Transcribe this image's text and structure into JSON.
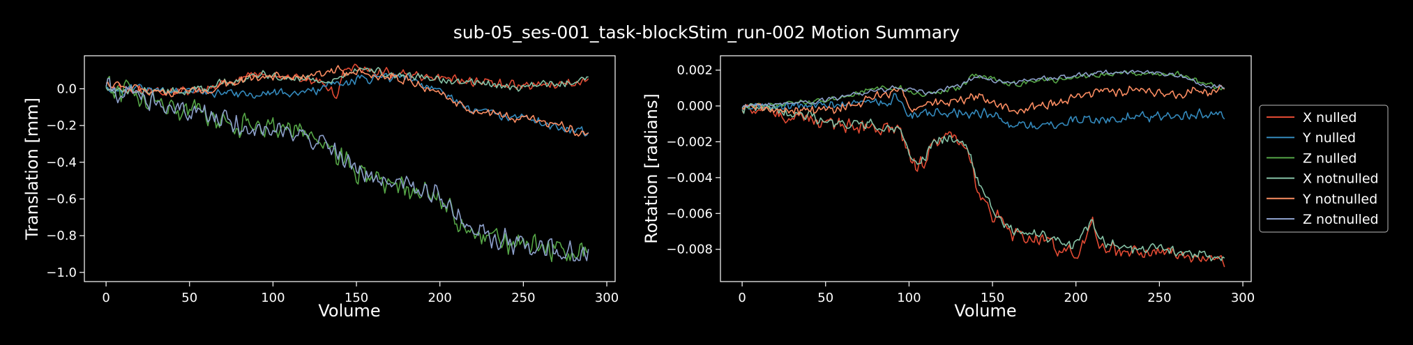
{
  "figure": {
    "title": "sub-05_ses-001_task-blockStim_run-002 Motion Summary",
    "background": "#000000",
    "foreground": "#ffffff"
  },
  "legend": {
    "placement": "right, outside axes",
    "entries": [
      {
        "name": "X nulled",
        "color": "#e24a33"
      },
      {
        "name": "Y nulled",
        "color": "#348abd"
      },
      {
        "name": "Z nulled",
        "color": "#55a546"
      },
      {
        "name": "X notnulled",
        "color": "#86c3a6"
      },
      {
        "name": "Y notnulled",
        "color": "#fc8d62"
      },
      {
        "name": "Z notnulled",
        "color": "#8da0cb"
      }
    ]
  },
  "chart_data": [
    {
      "type": "line",
      "title": "",
      "xlabel": "Volume",
      "ylabel": "Translation [mm]",
      "xlim": [
        -13,
        305
      ],
      "ylim": [
        -1.05,
        0.18
      ],
      "xticks": [
        0,
        50,
        100,
        150,
        200,
        250,
        300
      ],
      "yticks": [
        0.0,
        -0.2,
        -0.4,
        -0.6,
        -0.8,
        -1.0
      ],
      "ytick_labels": [
        "0.0",
        "−0.2",
        "−0.4",
        "−0.6",
        "−0.8",
        "−1.0"
      ],
      "grid": false,
      "series": [
        {
          "name": "X nulled",
          "color": "#e24a33",
          "n": 290,
          "keypoints": [
            [
              0,
              0.0
            ],
            [
              30,
              -0.01
            ],
            [
              50,
              -0.02
            ],
            [
              70,
              0.03
            ],
            [
              90,
              0.08
            ],
            [
              110,
              0.06
            ],
            [
              130,
              0.04
            ],
            [
              138,
              -0.05
            ],
            [
              142,
              0.12
            ],
            [
              160,
              0.1
            ],
            [
              180,
              0.08
            ],
            [
              200,
              0.06
            ],
            [
              220,
              0.04
            ],
            [
              250,
              0.02
            ],
            [
              270,
              0.03
            ],
            [
              289,
              0.04
            ]
          ],
          "noise": 0.018
        },
        {
          "name": "Y nulled",
          "color": "#348abd",
          "n": 290,
          "keypoints": [
            [
              0,
              0.0
            ],
            [
              30,
              -0.01
            ],
            [
              60,
              -0.02
            ],
            [
              90,
              -0.03
            ],
            [
              110,
              -0.02
            ],
            [
              130,
              0.0
            ],
            [
              140,
              0.03
            ],
            [
              160,
              0.06
            ],
            [
              180,
              0.07
            ],
            [
              200,
              -0.02
            ],
            [
              220,
              -0.12
            ],
            [
              250,
              -0.16
            ],
            [
              270,
              -0.2
            ],
            [
              289,
              -0.24
            ]
          ],
          "noise": 0.018
        },
        {
          "name": "Z nulled",
          "color": "#55a546",
          "n": 290,
          "keypoints": [
            [
              0,
              0.0
            ],
            [
              10,
              -0.02
            ],
            [
              20,
              -0.05
            ],
            [
              40,
              -0.1
            ],
            [
              60,
              -0.14
            ],
            [
              80,
              -0.2
            ],
            [
              100,
              -0.22
            ],
            [
              120,
              -0.24
            ],
            [
              130,
              -0.3
            ],
            [
              140,
              -0.38
            ],
            [
              150,
              -0.46
            ],
            [
              170,
              -0.5
            ],
            [
              190,
              -0.57
            ],
            [
              205,
              -0.62
            ],
            [
              215,
              -0.76
            ],
            [
              230,
              -0.8
            ],
            [
              250,
              -0.84
            ],
            [
              270,
              -0.88
            ],
            [
              289,
              -0.9
            ]
          ],
          "noise": 0.045
        },
        {
          "name": "X notnulled",
          "color": "#86c3a6",
          "n": 290,
          "keypoints": [
            [
              0,
              0.0
            ],
            [
              30,
              -0.01
            ],
            [
              50,
              -0.02
            ],
            [
              70,
              0.03
            ],
            [
              90,
              0.08
            ],
            [
              110,
              0.06
            ],
            [
              130,
              0.04
            ],
            [
              140,
              0.06
            ],
            [
              150,
              0.1
            ],
            [
              170,
              0.08
            ],
            [
              190,
              0.06
            ],
            [
              210,
              0.04
            ],
            [
              230,
              0.02
            ],
            [
              250,
              0.01
            ],
            [
              270,
              0.03
            ],
            [
              289,
              0.05
            ]
          ],
          "noise": 0.016
        },
        {
          "name": "Y notnulled",
          "color": "#fc8d62",
          "n": 290,
          "keypoints": [
            [
              0,
              0.03
            ],
            [
              20,
              -0.01
            ],
            [
              40,
              -0.02
            ],
            [
              60,
              -0.01
            ],
            [
              80,
              0.05
            ],
            [
              100,
              0.07
            ],
            [
              120,
              0.06
            ],
            [
              140,
              0.1
            ],
            [
              160,
              0.07
            ],
            [
              180,
              0.05
            ],
            [
              200,
              -0.03
            ],
            [
              220,
              -0.12
            ],
            [
              250,
              -0.16
            ],
            [
              270,
              -0.2
            ],
            [
              289,
              -0.26
            ]
          ],
          "noise": 0.018
        },
        {
          "name": "Z notnulled",
          "color": "#8da0cb",
          "n": 290,
          "keypoints": [
            [
              0,
              0.0
            ],
            [
              10,
              -0.02
            ],
            [
              20,
              -0.05
            ],
            [
              40,
              -0.1
            ],
            [
              60,
              -0.14
            ],
            [
              80,
              -0.2
            ],
            [
              100,
              -0.22
            ],
            [
              120,
              -0.24
            ],
            [
              130,
              -0.3
            ],
            [
              140,
              -0.36
            ],
            [
              150,
              -0.44
            ],
            [
              170,
              -0.5
            ],
            [
              190,
              -0.56
            ],
            [
              205,
              -0.62
            ],
            [
              215,
              -0.74
            ],
            [
              230,
              -0.8
            ],
            [
              250,
              -0.84
            ],
            [
              270,
              -0.88
            ],
            [
              289,
              -0.92
            ]
          ],
          "noise": 0.04
        }
      ]
    },
    {
      "type": "line",
      "title": "",
      "xlabel": "Volume",
      "ylabel": "Rotation [radians]",
      "xlim": [
        -13,
        305
      ],
      "ylim": [
        -0.0098,
        0.0028
      ],
      "xticks": [
        0,
        50,
        100,
        150,
        200,
        250,
        300
      ],
      "yticks": [
        0.002,
        0.0,
        -0.002,
        -0.004,
        -0.006,
        -0.008
      ],
      "ytick_labels": [
        "0.002",
        "0.000",
        "−0.002",
        "−0.004",
        "−0.006",
        "−0.008"
      ],
      "grid": false,
      "series": [
        {
          "name": "X nulled",
          "color": "#e24a33",
          "n": 290,
          "keypoints": [
            [
              0,
              0.0
            ],
            [
              20,
              -0.0004
            ],
            [
              40,
              -0.0008
            ],
            [
              60,
              -0.001
            ],
            [
              80,
              -0.0012
            ],
            [
              95,
              -0.0014
            ],
            [
              100,
              -0.0028
            ],
            [
              105,
              -0.0035
            ],
            [
              115,
              -0.0022
            ],
            [
              125,
              -0.0018
            ],
            [
              135,
              -0.0025
            ],
            [
              140,
              -0.0042
            ],
            [
              150,
              -0.006
            ],
            [
              160,
              -0.007
            ],
            [
              180,
              -0.0075
            ],
            [
              200,
              -0.0082
            ],
            [
              210,
              -0.0065
            ],
            [
              215,
              -0.0078
            ],
            [
              230,
              -0.0082
            ],
            [
              250,
              -0.0082
            ],
            [
              270,
              -0.0085
            ],
            [
              289,
              -0.0086
            ]
          ],
          "noise": 0.0003
        },
        {
          "name": "Y nulled",
          "color": "#348abd",
          "n": 290,
          "keypoints": [
            [
              0,
              0.0
            ],
            [
              20,
              0.0
            ],
            [
              40,
              0.0
            ],
            [
              60,
              0.0001
            ],
            [
              80,
              0.0003
            ],
            [
              95,
              0.0004
            ],
            [
              100,
              -0.0006
            ],
            [
              110,
              -0.0004
            ],
            [
              130,
              -0.0003
            ],
            [
              150,
              -0.0005
            ],
            [
              160,
              -0.0012
            ],
            [
              180,
              -0.0012
            ],
            [
              200,
              -0.0008
            ],
            [
              220,
              -0.0008
            ],
            [
              240,
              -0.0006
            ],
            [
              260,
              -0.0005
            ],
            [
              289,
              -0.0005
            ]
          ],
          "noise": 0.0002
        },
        {
          "name": "Z nulled",
          "color": "#55a546",
          "n": 290,
          "keypoints": [
            [
              0,
              0.0
            ],
            [
              20,
              0.0001
            ],
            [
              40,
              0.0002
            ],
            [
              60,
              0.0005
            ],
            [
              80,
              0.001
            ],
            [
              95,
              0.001
            ],
            [
              110,
              0.0006
            ],
            [
              130,
              0.001
            ],
            [
              140,
              0.0018
            ],
            [
              160,
              0.0012
            ],
            [
              180,
              0.0014
            ],
            [
              200,
              0.0016
            ],
            [
              220,
              0.0018
            ],
            [
              240,
              0.0018
            ],
            [
              260,
              0.0018
            ],
            [
              280,
              0.0012
            ],
            [
              289,
              0.001
            ]
          ],
          "noise": 0.00012
        },
        {
          "name": "X notnulled",
          "color": "#86c3a6",
          "n": 290,
          "keypoints": [
            [
              0,
              0.0
            ],
            [
              20,
              -0.0003
            ],
            [
              40,
              -0.0006
            ],
            [
              60,
              -0.0009
            ],
            [
              80,
              -0.0011
            ],
            [
              95,
              -0.0013
            ],
            [
              100,
              -0.0026
            ],
            [
              105,
              -0.0033
            ],
            [
              115,
              -0.002
            ],
            [
              125,
              -0.0017
            ],
            [
              135,
              -0.0022
            ],
            [
              140,
              -0.0038
            ],
            [
              150,
              -0.0058
            ],
            [
              160,
              -0.0068
            ],
            [
              180,
              -0.0072
            ],
            [
              200,
              -0.0078
            ],
            [
              210,
              -0.0062
            ],
            [
              215,
              -0.0075
            ],
            [
              230,
              -0.008
            ],
            [
              250,
              -0.008
            ],
            [
              270,
              -0.0082
            ],
            [
              289,
              -0.0084
            ]
          ],
          "noise": 0.00022
        },
        {
          "name": "Y notnulled",
          "color": "#fc8d62",
          "n": 290,
          "keypoints": [
            [
              0,
              0.0
            ],
            [
              20,
              -0.0002
            ],
            [
              40,
              -0.0003
            ],
            [
              60,
              -0.0001
            ],
            [
              80,
              0.0005
            ],
            [
              95,
              0.0008
            ],
            [
              100,
              -0.0002
            ],
            [
              110,
              0.0
            ],
            [
              130,
              0.0003
            ],
            [
              140,
              0.0006
            ],
            [
              160,
              -0.0002
            ],
            [
              180,
              0.0
            ],
            [
              200,
              0.0005
            ],
            [
              220,
              0.0008
            ],
            [
              240,
              0.0009
            ],
            [
              260,
              0.0006
            ],
            [
              289,
              0.001
            ]
          ],
          "noise": 0.0002
        },
        {
          "name": "Z notnulled",
          "color": "#8da0cb",
          "n": 290,
          "keypoints": [
            [
              0,
              0.0
            ],
            [
              20,
              0.0001
            ],
            [
              40,
              0.0002
            ],
            [
              60,
              0.0005
            ],
            [
              80,
              0.0009
            ],
            [
              95,
              0.001
            ],
            [
              110,
              0.0007
            ],
            [
              130,
              0.0011
            ],
            [
              140,
              0.0016
            ],
            [
              160,
              0.0013
            ],
            [
              180,
              0.0015
            ],
            [
              200,
              0.0017
            ],
            [
              220,
              0.0019
            ],
            [
              240,
              0.0019
            ],
            [
              260,
              0.0017
            ],
            [
              280,
              0.0011
            ],
            [
              289,
              0.0011
            ]
          ],
          "noise": 0.0001
        }
      ]
    }
  ]
}
